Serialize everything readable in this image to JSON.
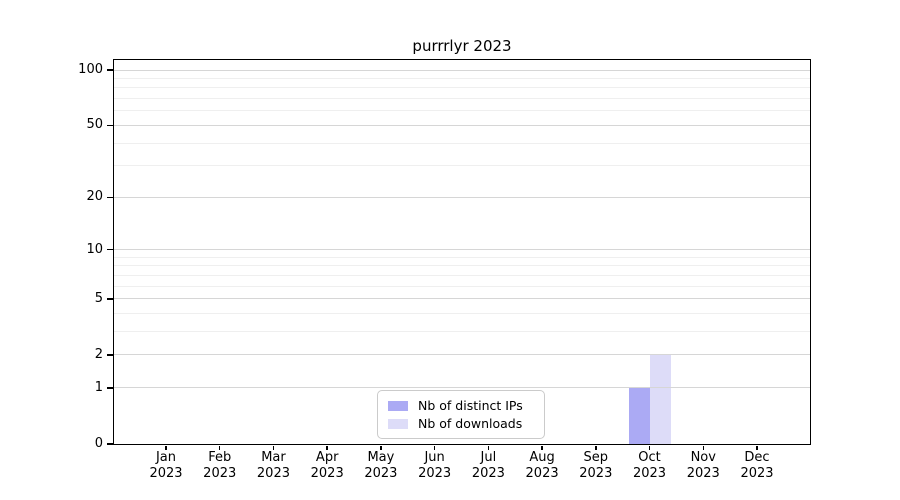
{
  "chart_data": {
    "type": "bar",
    "title": "purrrlyr 2023",
    "categories": [
      "Jan",
      "Feb",
      "Mar",
      "Apr",
      "May",
      "Jun",
      "Jul",
      "Aug",
      "Sep",
      "Oct",
      "Nov",
      "Dec"
    ],
    "category_year": "2023",
    "series": [
      {
        "name": "Nb of distinct IPs",
        "color": "#abaaf4",
        "values": [
          0,
          0,
          0,
          0,
          0,
          0,
          0,
          0,
          0,
          1,
          0,
          0
        ]
      },
      {
        "name": "Nb of downloads",
        "color": "#dddcf8",
        "values": [
          0,
          0,
          0,
          0,
          0,
          0,
          0,
          0,
          0,
          2,
          0,
          0
        ]
      }
    ],
    "y_axis": {
      "scale": "log1p",
      "min": 0,
      "max": 100,
      "ticks": [
        0,
        1,
        2,
        5,
        10,
        20,
        50,
        100
      ],
      "minor_ticks": [
        3,
        4,
        6,
        7,
        8,
        9,
        30,
        40,
        60,
        70,
        80,
        90
      ]
    },
    "xlabel": "",
    "ylabel": "",
    "grid": "horizontal-major-and-minor",
    "legend_position": "bottom-center",
    "colors": {
      "grid_major": "#d6d6d6",
      "grid_minor": "#efefef",
      "spine": "#000000",
      "text": "#000000"
    }
  }
}
